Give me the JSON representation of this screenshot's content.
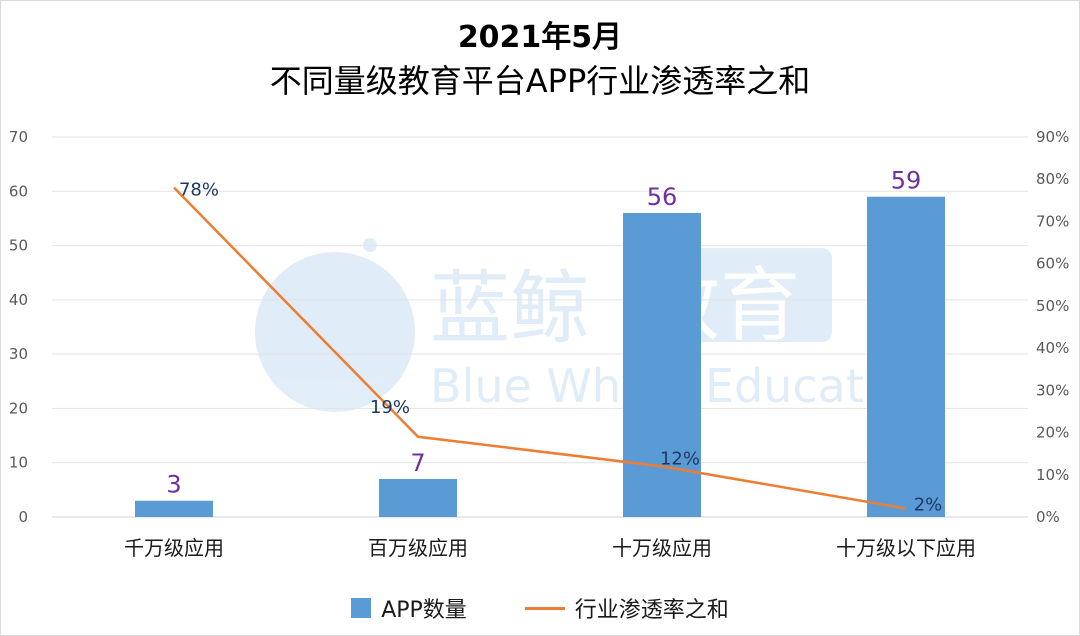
{
  "title_line1": "2021年5月",
  "title_line2": "不同量级教育平台APP行业渗透率之和",
  "watermark": {
    "cn": "蓝鲸教育",
    "en": "Blue Whale Education"
  },
  "legend": {
    "bar_label": "APP数量",
    "line_label": "行业渗透率之和"
  },
  "colors": {
    "bar": "#5b9bd5",
    "line": "#ed7d31",
    "bar_label": "#7030a0",
    "line_label": "#1f3864"
  },
  "chart_data": {
    "type": "bar",
    "categories": [
      "千万级应用",
      "百万级应用",
      "十万级应用",
      "十万级以下应用"
    ],
    "series": [
      {
        "name": "APP数量",
        "type": "bar",
        "axis": "left",
        "values": [
          3,
          7,
          56,
          59
        ],
        "labels": [
          "3",
          "7",
          "56",
          "59"
        ]
      },
      {
        "name": "行业渗透率之和",
        "type": "line",
        "axis": "right",
        "values": [
          78,
          19,
          12,
          2
        ],
        "labels": [
          "78%",
          "19%",
          "12%",
          "2%"
        ]
      }
    ],
    "y_left": {
      "min": 0,
      "max": 70,
      "step": 10,
      "ticks": [
        "0",
        "10",
        "20",
        "30",
        "40",
        "50",
        "60",
        "70"
      ]
    },
    "y_right": {
      "min": 0,
      "max": 90,
      "step": 10,
      "ticks": [
        "0%",
        "10%",
        "20%",
        "30%",
        "40%",
        "50%",
        "60%",
        "70%",
        "80%",
        "90%"
      ]
    },
    "grid": true,
    "legend_position": "bottom"
  }
}
